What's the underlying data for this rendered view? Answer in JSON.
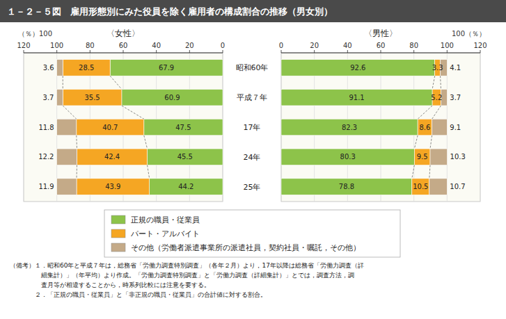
{
  "chart_data": [
    {
      "type": "bar",
      "orientation": "horizontal",
      "stacked": true,
      "data_labels": true,
      "grid": true,
      "legend": "bottom",
      "title": "１－２－５図　雇用形態別にみた役員を除く雇用者の構成割合の推移（男女別）",
      "subtitle": "〈女性〉",
      "xlabel": "（％）100",
      "categories": [
        "昭和60年",
        "平成７年",
        "17年",
        "24年",
        "25年"
      ],
      "series": [
        {
          "name": "正規の職員・従業員",
          "color": "#8DC34A",
          "values": [
            67.9,
            60.9,
            47.5,
            45.5,
            44.2
          ]
        },
        {
          "name": "パート・アルバイト",
          "color": "#F5A623",
          "values": [
            28.5,
            35.5,
            40.7,
            42.4,
            43.9
          ]
        },
        {
          "name": "その他（労働者派遣事業所の派遣社員，契約社員・嘱託，その他）",
          "color": "#C4AA88",
          "values": [
            3.6,
            3.7,
            11.8,
            12.2,
            11.9
          ]
        }
      ],
      "xlim": [
        120,
        0
      ],
      "xticks": [
        120,
        100,
        80,
        60,
        40,
        20,
        0
      ],
      "annotations": [
        "（備考）１．昭和60年と平成７年は，総務省「労働力調査特別調査」（各年２月）より，17年以降は総務省「労働力調査（詳",
        "　　　　　細集計）」（年平均）より作成。「労働力調査特別調査」と「労働力調査（詳細集計）」とでは，調査方法，調",
        "　　　　　査月等が相違することから，時系列比較には注意を要する。",
        "　　　　２．「正規の職員・従業員」と「非正規の職員・従業員」の合計値に対する割合。"
      ]
    },
    {
      "type": "bar",
      "orientation": "horizontal",
      "stacked": true,
      "data_labels": true,
      "grid": true,
      "subtitle": "〈男性〉",
      "xlabel": "100（％）",
      "categories": [
        "昭和60年",
        "平成７年",
        "17年",
        "24年",
        "25年"
      ],
      "series": [
        {
          "color": "#8DC34A",
          "values": [
            92.6,
            91.1,
            82.3,
            80.3,
            78.8
          ]
        },
        {
          "color": "#F5A623",
          "values": [
            3.3,
            5.2,
            8.6,
            9.5,
            10.5
          ]
        },
        {
          "color": "#C4AA88",
          "values": [
            4.1,
            3.7,
            9.1,
            10.3,
            10.7
          ]
        }
      ],
      "xlim": [
        0,
        120
      ],
      "xticks": [
        0,
        20,
        40,
        60,
        80,
        100,
        120
      ]
    }
  ]
}
